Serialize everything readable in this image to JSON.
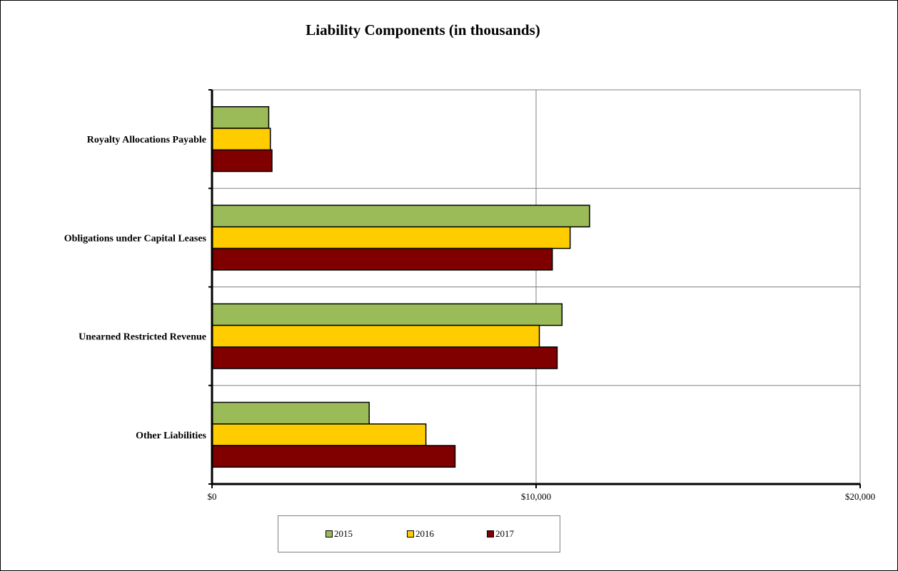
{
  "chart_data": {
    "type": "bar",
    "orientation": "horizontal",
    "title": "Liability Components (in thousands)",
    "categories": [
      "Royalty Allocations Payable",
      "Obligations under Capital Leases",
      "Unearned Restricted Revenue",
      "Other Liabilities"
    ],
    "series": [
      {
        "name": "2015",
        "color": "#9BBB59",
        "values": [
          1750,
          11650,
          10800,
          4850
        ]
      },
      {
        "name": "2016",
        "color": "#FFCC00",
        "values": [
          1800,
          11050,
          10100,
          6600
        ]
      },
      {
        "name": "2017",
        "color": "#800000",
        "values": [
          1850,
          10500,
          10650,
          7500
        ]
      }
    ],
    "xlim": [
      0,
      20000
    ],
    "xticks": [
      {
        "value": 0,
        "label": "$0"
      },
      {
        "value": 10000,
        "label": "$10,000"
      },
      {
        "value": 20000,
        "label": "$20,000"
      }
    ],
    "grid": true,
    "legend_position": "bottom"
  }
}
